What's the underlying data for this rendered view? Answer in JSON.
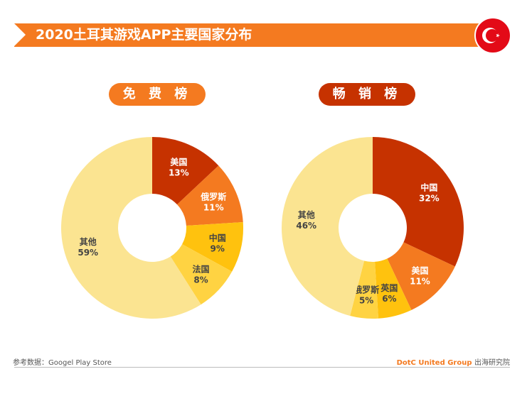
{
  "title": "2020土耳其游戏APP主要国家分布",
  "flag_icon": "turkey-flag",
  "chart_data": [
    {
      "type": "pie",
      "title": "免 费 榜",
      "slices": [
        {
          "label": "美国",
          "value": 13,
          "text": "13%",
          "color": "#c63200"
        },
        {
          "label": "俄罗斯",
          "value": 11,
          "text": "11%",
          "color": "#f47a20"
        },
        {
          "label": "中国",
          "value": 9,
          "text": "9%",
          "color": "#ffc20e"
        },
        {
          "label": "法国",
          "value": 8,
          "text": "8%",
          "color": "#ffd342"
        },
        {
          "label": "其他",
          "value": 59,
          "text": "59%",
          "color": "#fbe491"
        }
      ]
    },
    {
      "type": "pie",
      "title": "畅 销 榜",
      "slices": [
        {
          "label": "中国",
          "value": 32,
          "text": "32%",
          "color": "#c63200"
        },
        {
          "label": "美国",
          "value": 11,
          "text": "11%",
          "color": "#f47a20"
        },
        {
          "label": "英国",
          "value": 6,
          "text": "6%",
          "color": "#ffc20e"
        },
        {
          "label": "俄罗斯",
          "value": 5,
          "text": "5%",
          "color": "#ffd342"
        },
        {
          "label": "其他",
          "value": 46,
          "text": "46%",
          "color": "#fbe491"
        }
      ]
    }
  ],
  "footer": {
    "source": "参考数据：Googel Play Store",
    "brand": "DotC United Group",
    "brand_sub": "出海研究院"
  }
}
